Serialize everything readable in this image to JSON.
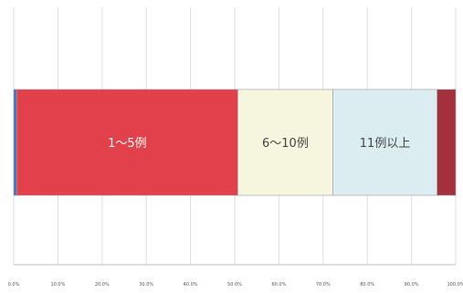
{
  "chart_data": {
    "type": "bar",
    "orientation": "horizontal",
    "stacked": true,
    "categories": [
      ""
    ],
    "series": [
      {
        "name": "",
        "values": [
          0.7
        ],
        "color": "#4a72c4"
      },
      {
        "name": "1～5例",
        "values": [
          50.0
        ],
        "color": "#e2414b"
      },
      {
        "name": "6～10例",
        "values": [
          21.5
        ],
        "color": "#f6f6df"
      },
      {
        "name": "11例以上",
        "values": [
          23.6
        ],
        "color": "#dcedf2"
      },
      {
        "name": "",
        "values": [
          4.2
        ],
        "color": "#a3303a"
      }
    ],
    "xlim": [
      0,
      100
    ],
    "x_ticks": [
      0,
      10,
      20,
      30,
      40,
      50,
      60,
      70,
      80,
      90,
      100
    ],
    "x_tick_labels": [
      "0.0%",
      "10.0%",
      "20.0%",
      "30.0%",
      "40.0%",
      "50.0%",
      "60.0%",
      "70.0%",
      "80.0%",
      "90.0%",
      "100.0%"
    ],
    "grid": true,
    "legend": "none",
    "title": "",
    "xlabel": "",
    "ylabel": ""
  }
}
